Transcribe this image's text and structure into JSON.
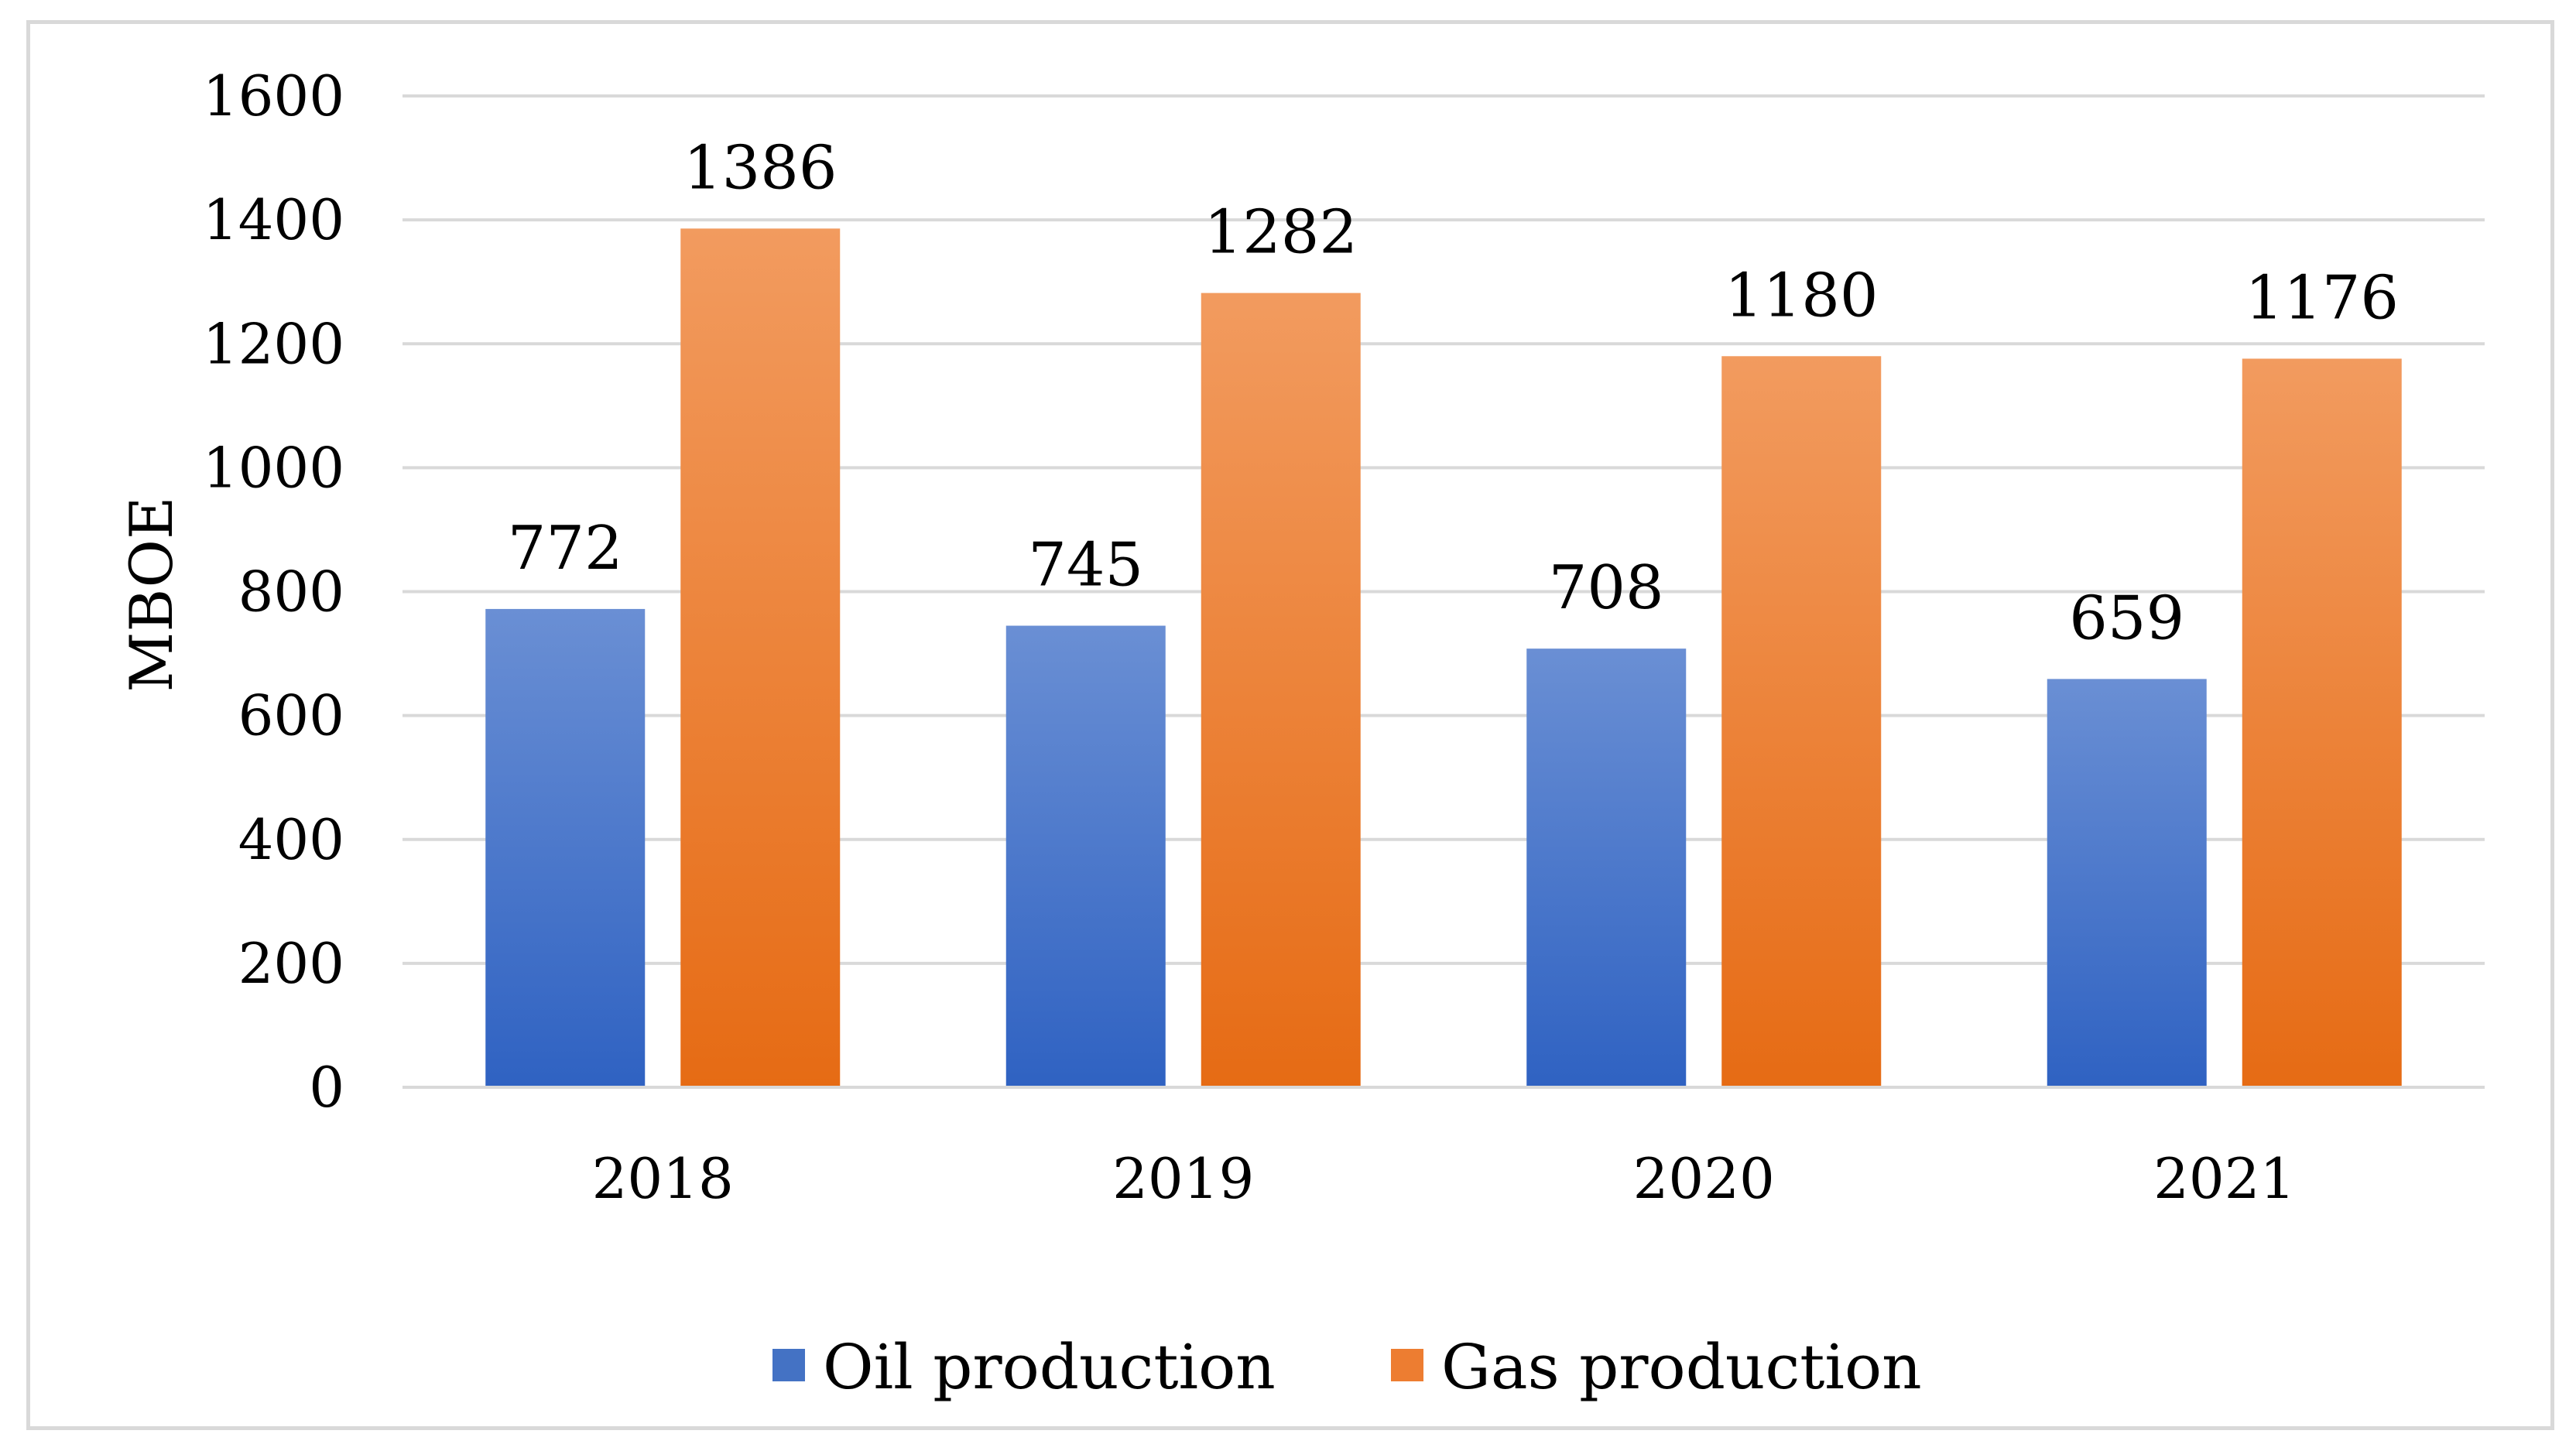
{
  "chart_data": {
    "type": "bar",
    "title": "",
    "xlabel": "",
    "ylabel": "MBOE",
    "ylim": [
      0,
      1600
    ],
    "yticks": [
      0,
      200,
      400,
      600,
      800,
      1000,
      1200,
      1400,
      1600
    ],
    "grid": true,
    "legend_position": "bottom",
    "categories": [
      "2018",
      "2019",
      "2020",
      "2021"
    ],
    "series": [
      {
        "name": "Oil production",
        "values": [
          772,
          745,
          708,
          659
        ],
        "color_top": "#6a8fd4",
        "color_bottom": "#2f62c2",
        "color": "#4472c4"
      },
      {
        "name": "Gas production",
        "values": [
          1386,
          1282,
          1180,
          1176
        ],
        "color_top": "#f29b5f",
        "color_bottom": "#e66b14",
        "color": "#ed7d31"
      }
    ]
  }
}
